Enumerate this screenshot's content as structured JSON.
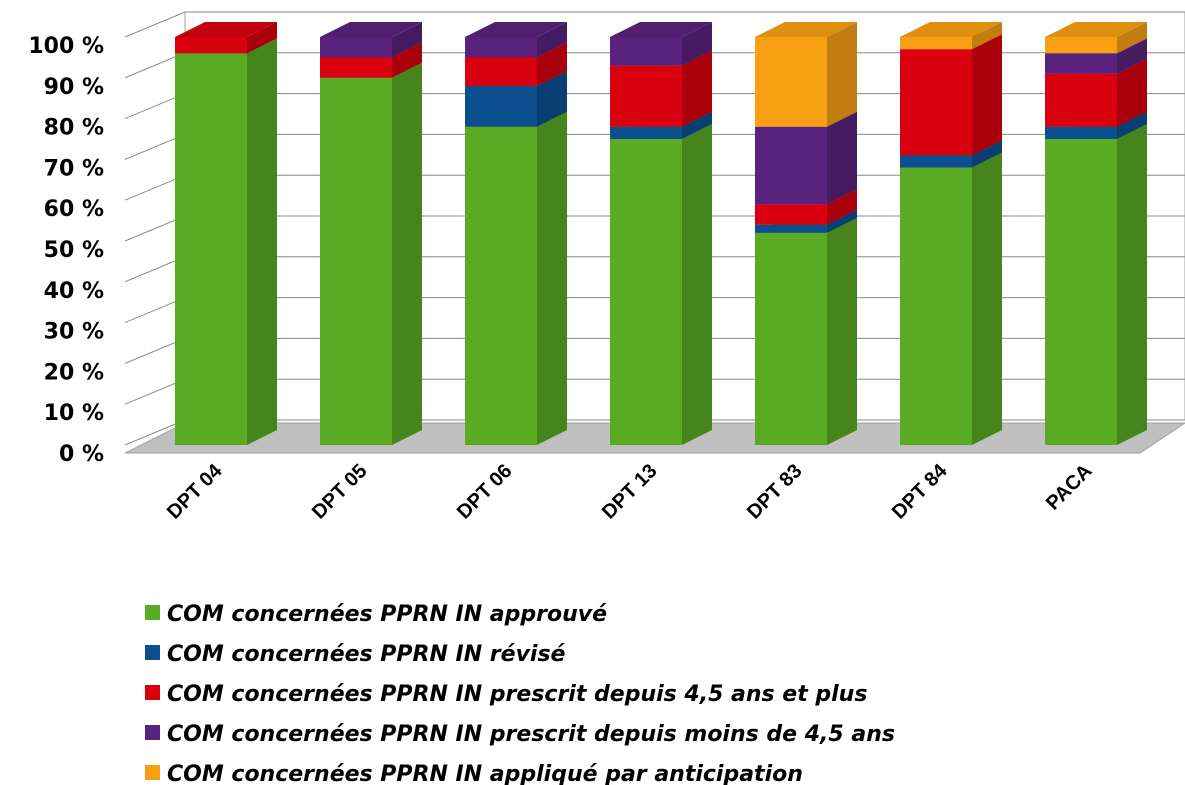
{
  "chart_data": {
    "type": "stacked_bar_3d",
    "categories": [
      "DPT 04",
      "DPT 05",
      "DPT 06",
      "DPT 13",
      "DPT 83",
      "DPT 84",
      "PACA"
    ],
    "series": [
      {
        "name": "COM concernées PPRN IN approuvé",
        "color": "#5aab23",
        "values": [
          96,
          90,
          78,
          75,
          52,
          68,
          75
        ]
      },
      {
        "name": "COM concernées PPRN IN révisé",
        "color": "#0b4f8f",
        "values": [
          0,
          0,
          10,
          3,
          2,
          3,
          3
        ]
      },
      {
        "name": "COM concernées PPRN IN prescrit depuis 4,5 ans et plus",
        "color": "#d9000f",
        "values": [
          4,
          5,
          7,
          15,
          5,
          26,
          13
        ]
      },
      {
        "name": "COM concernées PPRN IN prescrit depuis moins de 4,5 ans",
        "color": "#59227c",
        "values": [
          0,
          5,
          5,
          7,
          19,
          0,
          5
        ]
      },
      {
        "name": "COM concernées PPRN IN appliqué par anticipation",
        "color": "#f8a013",
        "values": [
          0,
          0,
          0,
          0,
          22,
          3,
          4
        ]
      }
    ],
    "ylim": [
      0,
      100
    ],
    "yticks": [
      {
        "value": 0,
        "label": "0 %"
      },
      {
        "value": 10,
        "label": "10 %"
      },
      {
        "value": 20,
        "label": "20 %"
      },
      {
        "value": 30,
        "label": "30 %"
      },
      {
        "value": 40,
        "label": "40 %"
      },
      {
        "value": 50,
        "label": "50 %"
      },
      {
        "value": 60,
        "label": "60 %"
      },
      {
        "value": 70,
        "label": "70 %"
      },
      {
        "value": 80,
        "label": "80 %"
      },
      {
        "value": 90,
        "label": "90 %"
      },
      {
        "value": 100,
        "label": "100 %"
      }
    ],
    "grid": true
  }
}
